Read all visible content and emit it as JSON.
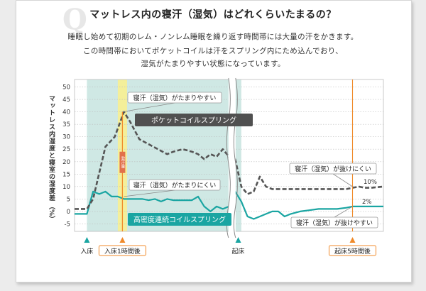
{
  "header": {
    "q_mark": "Q",
    "title": "マットレス内の寝汗（湿気）はどれくらいたまるの？",
    "desc_lines": [
      "睡眠し始めて初期のレム・ノンレム睡眠を繰り返す時間帯には大量の汗をかきます。",
      "この時間帯においてポケットコイルは汗をスプリング内にため込んでおり、",
      "湿気がたまりやすい状態になっています。"
    ]
  },
  "chart_data": {
    "type": "line",
    "ylabel_main": "マットレス内湿度と寝室の湿度差",
    "ylabel_unit": "（%）",
    "ylim": [
      -8,
      53
    ],
    "yticks": [
      50,
      45,
      40,
      35,
      30,
      25,
      20,
      15,
      10,
      5,
      0,
      -5
    ],
    "grid": true,
    "xaxis_markers": [
      {
        "label": "入床",
        "boxed": false,
        "color": "#1aa5a2"
      },
      {
        "label": "入床1時間後",
        "boxed": true,
        "color": "#f08a2a"
      },
      {
        "label": "起床",
        "boxed": false,
        "color": "#1aa5a2"
      },
      {
        "label": "起床5時間後",
        "boxed": true,
        "color": "#f08a2a"
      }
    ],
    "series": [
      {
        "name": "ポケットコイルスプリング",
        "style": "dashed",
        "color": "#555555",
        "x": [
          0,
          4,
          6,
          10,
          13,
          16,
          18,
          21,
          24,
          27,
          30,
          32,
          35,
          38,
          40,
          42,
          44,
          46,
          48,
          50,
          52,
          54,
          56,
          58,
          60,
          62,
          64,
          66,
          68,
          70,
          73,
          76,
          79,
          82,
          85,
          88,
          90,
          92,
          94,
          96,
          100
        ],
        "values": [
          1,
          1,
          5,
          26,
          30,
          40,
          36,
          29,
          27,
          25,
          23,
          24,
          25,
          24,
          23,
          21,
          23,
          22,
          25,
          22,
          21,
          10,
          7,
          8,
          14,
          10,
          9,
          9,
          9,
          9,
          9,
          9,
          9,
          9,
          9,
          9,
          9.5,
          10,
          9.5,
          9.5,
          10
        ]
      },
      {
        "name": "高密度連続コイルスプリング",
        "style": "solid",
        "color": "#1aa5a2",
        "x": [
          0,
          4,
          6,
          8,
          10,
          12,
          14,
          16,
          18,
          20,
          22,
          24,
          26,
          28,
          30,
          32,
          35,
          38,
          40,
          42,
          44,
          46,
          48,
          50,
          52,
          54,
          56,
          58,
          60,
          62,
          64,
          66,
          68,
          70,
          73,
          76,
          79,
          82,
          85,
          88,
          90,
          92,
          94,
          96,
          100
        ],
        "values": [
          -1,
          -1,
          8,
          7,
          8,
          6,
          6,
          5,
          5,
          5,
          5,
          4.5,
          5,
          4,
          5,
          4.5,
          4.5,
          4.5,
          6,
          2,
          0,
          2,
          1,
          2,
          8,
          4,
          -2,
          -3,
          -2,
          -1,
          0,
          0,
          -2,
          -1,
          0,
          0.5,
          1,
          1,
          1,
          1.5,
          2,
          2,
          2,
          2,
          2
        ]
      }
    ],
    "annotations": [
      {
        "text": "寝汗（湿気）がたまりやすい"
      },
      {
        "text": "寝汗（湿気）がたまりにくい"
      },
      {
        "text": "寝汗（湿気）が抜けにくい"
      },
      {
        "text": "寝汗（湿気）が抜けやすい"
      },
      {
        "text": "10%"
      },
      {
        "text": "2%"
      },
      {
        "text": "発汗量"
      }
    ]
  }
}
